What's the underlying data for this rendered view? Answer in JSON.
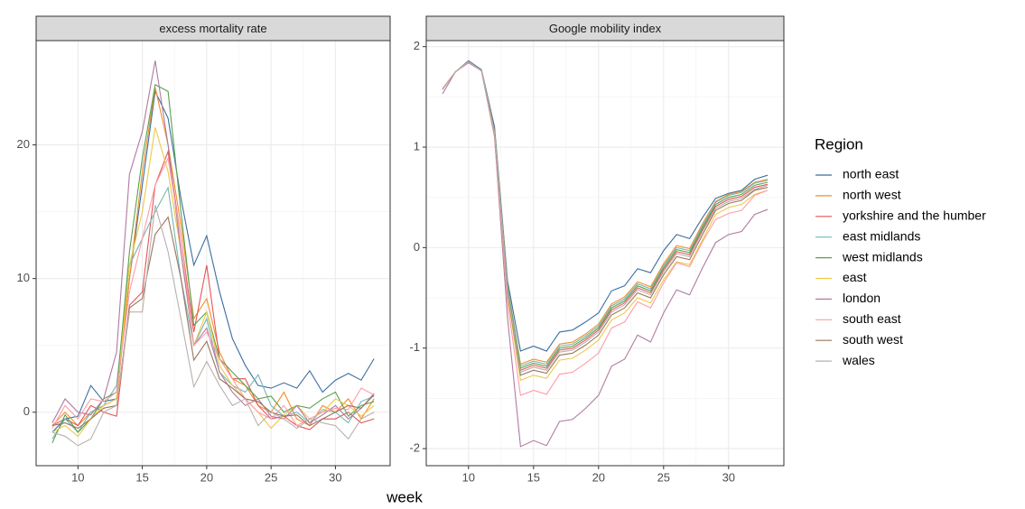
{
  "xlabel": "week",
  "legend": {
    "title": "Region"
  },
  "chart_data": [
    {
      "type": "line",
      "title": "excess mortality rate",
      "x": [
        8,
        9,
        10,
        11,
        12,
        13,
        14,
        15,
        16,
        17,
        18,
        19,
        20,
        21,
        22,
        23,
        24,
        25,
        26,
        27,
        28,
        29,
        30,
        31,
        32,
        33
      ],
      "xlim": [
        6.75,
        34.25
      ],
      "xticks": [
        10,
        15,
        20,
        25,
        30
      ],
      "ylim": [
        -4,
        27.8
      ],
      "yticks": [
        0,
        10,
        20
      ],
      "grid": true,
      "series": [
        {
          "name": "north east",
          "color": "#3c6e9f",
          "values": [
            -1.5,
            -0.5,
            -0.3,
            2.0,
            0.8,
            1.0,
            10,
            17,
            24,
            22,
            16,
            11,
            13.2,
            9,
            5.5,
            3.5,
            2,
            1.8,
            2.2,
            1.8,
            3.1,
            1.5,
            2.4,
            2.9,
            2.4,
            4.0
          ]
        },
        {
          "name": "north west",
          "color": "#f28e2b",
          "values": [
            -1,
            0,
            -1,
            0,
            0.5,
            1,
            10,
            18,
            24.3,
            20,
            14,
            7,
            8.5,
            4.5,
            2.5,
            2,
            0.5,
            0,
            1.5,
            -0.5,
            -1,
            0.5,
            0,
            1,
            -0.5,
            1
          ]
        },
        {
          "name": "yorkshire and the humber",
          "color": "#e15759",
          "values": [
            -1,
            -0.5,
            -1,
            0.5,
            0,
            -0.3,
            8,
            9,
            17,
            19.5,
            13,
            6,
            11,
            4,
            2.5,
            2.5,
            0.5,
            -0.5,
            -0.3,
            -1,
            -1.3,
            -0.5,
            -0.5,
            0,
            -0.8,
            -0.5
          ]
        },
        {
          "name": "east midlands",
          "color": "#76b7b2",
          "values": [
            -2,
            -0.5,
            -1.5,
            0,
            0.5,
            2,
            11,
            13,
            15,
            16.8,
            10,
            5,
            7,
            3,
            2,
            1.5,
            2.8,
            0.5,
            -0.3,
            0,
            -0.8,
            0.2,
            0,
            -0.8,
            0.8,
            1.2
          ]
        },
        {
          "name": "west midlands",
          "color": "#59a14f",
          "values": [
            -2.3,
            -0.2,
            -1.5,
            -0.5,
            1.0,
            1.5,
            12,
            19,
            24.5,
            24,
            15,
            6.5,
            7.5,
            4,
            3,
            2,
            1,
            1.2,
            0,
            0.5,
            0.3,
            1,
            1.5,
            -0.3,
            0.5,
            0.8
          ]
        },
        {
          "name": "east",
          "color": "#edc948",
          "values": [
            -1.5,
            -1,
            -1.8,
            -0.5,
            0.5,
            1,
            11,
            15,
            21.3,
            18,
            12,
            5,
            7.5,
            3.5,
            2,
            1,
            0,
            -1.2,
            -0.2,
            0.5,
            -0.5,
            0,
            1,
            0.5,
            -0.3,
            0.5
          ]
        },
        {
          "name": "london",
          "color": "#b07aa1",
          "values": [
            -0.8,
            1.0,
            0,
            -0.2,
            1.0,
            4.5,
            17.8,
            21,
            26.3,
            20,
            12,
            5,
            6.3,
            3,
            1.5,
            0.5,
            1,
            -0.3,
            -0.5,
            0.5,
            -0.8,
            -0.2,
            0.5,
            -0.5,
            0.3,
            1.4
          ]
        },
        {
          "name": "south east",
          "color": "#ff9da7",
          "values": [
            -1.2,
            0.5,
            -0.5,
            1,
            0.8,
            1.5,
            9,
            13,
            17,
            19,
            13,
            5,
            6,
            4,
            2.5,
            1,
            0,
            -0.5,
            0.5,
            -1,
            -0.5,
            0,
            0.3,
            0.2,
            1.8,
            1.3
          ]
        },
        {
          "name": "south west",
          "color": "#9c755f",
          "values": [
            -1,
            -0.8,
            -1.2,
            -0.5,
            0.3,
            0.5,
            7.8,
            8.5,
            13.3,
            14.6,
            10,
            3.9,
            5.3,
            2.5,
            1.8,
            1,
            0.8,
            0,
            -0.3,
            -0.2,
            -1,
            -0.5,
            0,
            0.5,
            0.3,
            1.3
          ]
        },
        {
          "name": "wales",
          "color": "#bab0ac",
          "values": [
            -1.5,
            -1.8,
            -2.5,
            -2,
            0,
            0.5,
            7.5,
            7.5,
            15.5,
            12,
            7,
            1.9,
            3.8,
            2,
            0.5,
            1,
            -1,
            0,
            -0.5,
            -1.2,
            -0.5,
            -0.8,
            -1,
            -2,
            -0.5,
            0
          ]
        }
      ]
    },
    {
      "type": "line",
      "title": "Google mobility index",
      "x": [
        8,
        9,
        10,
        11,
        12,
        13,
        14,
        15,
        16,
        17,
        18,
        19,
        20,
        21,
        22,
        23,
        24,
        25,
        26,
        27,
        28,
        29,
        30,
        31,
        32,
        33
      ],
      "xlim": [
        6.75,
        34.25
      ],
      "xticks": [
        10,
        15,
        20,
        25,
        30
      ],
      "ylim": [
        -2.17,
        2.06
      ],
      "yticks": [
        -2,
        -1,
        0,
        1,
        2
      ],
      "grid": true,
      "series": [
        {
          "name": "north east",
          "color": "#3c6e9f",
          "values": [
            1.58,
            1.75,
            1.86,
            1.77,
            1.2,
            -0.33,
            -1.03,
            -0.98,
            -1.03,
            -0.84,
            -0.82,
            -0.74,
            -0.65,
            -0.43,
            -0.38,
            -0.21,
            -0.25,
            -0.03,
            0.13,
            0.09,
            0.3,
            0.49,
            0.54,
            0.57,
            0.68,
            0.72
          ]
        },
        {
          "name": "north west",
          "color": "#f28e2b",
          "values": [
            1.58,
            1.75,
            1.85,
            1.76,
            1.16,
            -0.37,
            -1.16,
            -1.11,
            -1.14,
            -0.96,
            -0.94,
            -0.86,
            -0.76,
            -0.56,
            -0.49,
            -0.34,
            -0.39,
            -0.16,
            0.02,
            -0.01,
            0.24,
            0.46,
            0.53,
            0.56,
            0.65,
            0.68
          ]
        },
        {
          "name": "yorkshire and the humber",
          "color": "#e15759",
          "values": [
            1.58,
            1.75,
            1.85,
            1.76,
            1.15,
            -0.42,
            -1.22,
            -1.17,
            -1.2,
            -1.02,
            -1.0,
            -0.92,
            -0.82,
            -0.62,
            -0.55,
            -0.4,
            -0.45,
            -0.22,
            -0.04,
            -0.07,
            0.18,
            0.41,
            0.48,
            0.51,
            0.6,
            0.63
          ]
        },
        {
          "name": "east midlands",
          "color": "#76b7b2",
          "values": [
            1.58,
            1.75,
            1.85,
            1.76,
            1.15,
            -0.38,
            -1.18,
            -1.13,
            -1.16,
            -0.98,
            -0.96,
            -0.88,
            -0.78,
            -0.58,
            -0.51,
            -0.36,
            -0.41,
            -0.18,
            0.0,
            -0.03,
            0.22,
            0.45,
            0.52,
            0.55,
            0.64,
            0.67
          ]
        },
        {
          "name": "west midlands",
          "color": "#59a14f",
          "values": [
            1.58,
            1.75,
            1.85,
            1.76,
            1.15,
            -0.4,
            -1.2,
            -1.15,
            -1.18,
            -1.0,
            -0.98,
            -0.9,
            -0.8,
            -0.6,
            -0.53,
            -0.38,
            -0.43,
            -0.2,
            -0.02,
            -0.05,
            0.2,
            0.43,
            0.5,
            0.53,
            0.62,
            0.65
          ]
        },
        {
          "name": "east",
          "color": "#edc948",
          "values": [
            1.58,
            1.75,
            1.85,
            1.76,
            1.12,
            -0.48,
            -1.32,
            -1.27,
            -1.3,
            -1.12,
            -1.1,
            -1.02,
            -0.92,
            -0.72,
            -0.65,
            -0.5,
            -0.55,
            -0.32,
            -0.14,
            -0.17,
            0.08,
            0.33,
            0.4,
            0.43,
            0.53,
            0.57
          ]
        },
        {
          "name": "london",
          "color": "#b07aa1",
          "values": [
            1.53,
            1.75,
            1.84,
            1.76,
            1.1,
            -0.7,
            -1.98,
            -1.92,
            -1.97,
            -1.73,
            -1.71,
            -1.6,
            -1.47,
            -1.18,
            -1.11,
            -0.87,
            -0.94,
            -0.65,
            -0.42,
            -0.47,
            -0.2,
            0.05,
            0.13,
            0.16,
            0.33,
            0.38
          ]
        },
        {
          "name": "south east",
          "color": "#ff9da7",
          "values": [
            1.57,
            1.75,
            1.85,
            1.76,
            1.1,
            -0.55,
            -1.47,
            -1.42,
            -1.46,
            -1.26,
            -1.24,
            -1.15,
            -1.05,
            -0.8,
            -0.74,
            -0.54,
            -0.6,
            -0.35,
            -0.15,
            -0.19,
            0.06,
            0.28,
            0.34,
            0.37,
            0.52,
            0.57
          ]
        },
        {
          "name": "south west",
          "color": "#9c755f",
          "values": [
            1.58,
            1.75,
            1.85,
            1.76,
            1.13,
            -0.45,
            -1.27,
            -1.22,
            -1.25,
            -1.07,
            -1.05,
            -0.97,
            -0.87,
            -0.67,
            -0.6,
            -0.45,
            -0.5,
            -0.27,
            -0.09,
            -0.12,
            0.13,
            0.37,
            0.44,
            0.47,
            0.57,
            0.6
          ]
        },
        {
          "name": "wales",
          "color": "#bab0ac",
          "values": [
            1.58,
            1.75,
            1.85,
            1.76,
            1.14,
            -0.43,
            -1.24,
            -1.19,
            -1.22,
            -1.04,
            -1.02,
            -0.94,
            -0.84,
            -0.64,
            -0.57,
            -0.42,
            -0.47,
            -0.24,
            -0.06,
            -0.09,
            0.16,
            0.39,
            0.46,
            0.49,
            0.58,
            0.62
          ]
        }
      ]
    }
  ]
}
